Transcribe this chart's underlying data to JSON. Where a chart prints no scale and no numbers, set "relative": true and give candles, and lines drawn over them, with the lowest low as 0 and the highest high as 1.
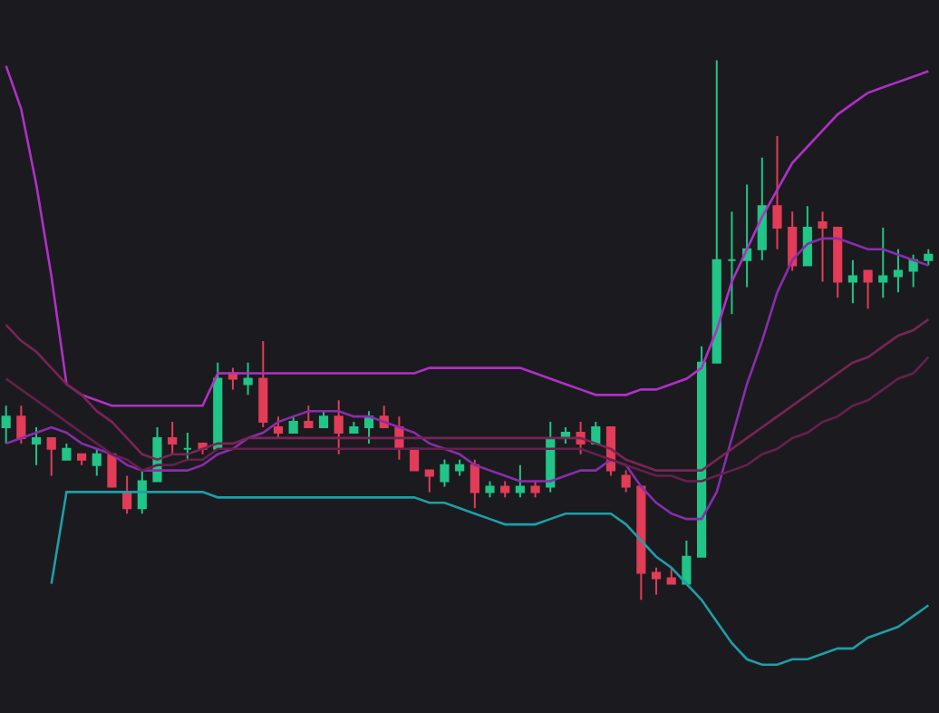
{
  "chart_data": {
    "type": "candlestick",
    "relative": true,
    "categories": [
      null,
      null,
      null,
      null,
      null,
      null,
      null,
      null,
      null,
      null,
      null,
      null,
      null,
      null,
      null,
      null,
      null,
      null,
      null,
      null,
      null,
      null,
      null,
      null,
      null,
      null,
      null,
      null,
      null,
      null,
      null,
      null,
      null,
      null,
      null,
      null,
      null,
      null,
      null,
      null,
      null,
      null,
      null,
      null,
      null,
      null,
      null,
      null,
      null,
      null,
      null,
      null,
      null,
      null,
      null,
      null,
      null,
      null,
      null,
      null,
      null,
      null
    ],
    "ohlc": [
      [
        0.32,
        0.36,
        0.29,
        0.34
      ],
      [
        0.34,
        0.36,
        0.29,
        0.3
      ],
      [
        0.29,
        0.32,
        0.25,
        0.3
      ],
      [
        0.3,
        0.3,
        0.23,
        0.28
      ],
      [
        0.26,
        0.29,
        0.26,
        0.28
      ],
      [
        0.27,
        0.27,
        0.25,
        0.26
      ],
      [
        0.25,
        0.28,
        0.23,
        0.27
      ],
      [
        0.27,
        0.27,
        0.21,
        0.21
      ],
      [
        0.2,
        0.23,
        0.16,
        0.17
      ],
      [
        0.17,
        0.24,
        0.16,
        0.22
      ],
      [
        0.22,
        0.32,
        0.22,
        0.3
      ],
      [
        0.3,
        0.33,
        0.27,
        0.29
      ],
      [
        0.28,
        0.31,
        0.26,
        0.28
      ],
      [
        0.29,
        0.29,
        0.27,
        0.28
      ],
      [
        0.28,
        0.44,
        0.28,
        0.41
      ],
      [
        0.42,
        0.43,
        0.39,
        0.41
      ],
      [
        0.4,
        0.44,
        0.38,
        0.41
      ],
      [
        0.41,
        0.48,
        0.32,
        0.33
      ],
      [
        0.32,
        0.34,
        0.3,
        0.31
      ],
      [
        0.31,
        0.34,
        0.31,
        0.33
      ],
      [
        0.33,
        0.36,
        0.32,
        0.32
      ],
      [
        0.32,
        0.35,
        0.32,
        0.34
      ],
      [
        0.34,
        0.37,
        0.27,
        0.31
      ],
      [
        0.31,
        0.33,
        0.31,
        0.32
      ],
      [
        0.32,
        0.35,
        0.29,
        0.34
      ],
      [
        0.34,
        0.36,
        0.32,
        0.32
      ],
      [
        0.32,
        0.34,
        0.26,
        0.28
      ],
      [
        0.28,
        0.28,
        0.24,
        0.24
      ],
      [
        0.24,
        0.24,
        0.2,
        0.23
      ],
      [
        0.22,
        0.26,
        0.21,
        0.25
      ],
      [
        0.24,
        0.26,
        0.23,
        0.25
      ],
      [
        0.25,
        0.26,
        0.17,
        0.2
      ],
      [
        0.2,
        0.22,
        0.19,
        0.21
      ],
      [
        0.21,
        0.22,
        0.19,
        0.2
      ],
      [
        0.2,
        0.25,
        0.19,
        0.21
      ],
      [
        0.21,
        0.22,
        0.19,
        0.2
      ],
      [
        0.21,
        0.33,
        0.2,
        0.3
      ],
      [
        0.3,
        0.32,
        0.29,
        0.31
      ],
      [
        0.31,
        0.33,
        0.27,
        0.29
      ],
      [
        0.29,
        0.33,
        0.29,
        0.32
      ],
      [
        0.32,
        0.32,
        0.23,
        0.24
      ],
      [
        0.23,
        0.24,
        0.2,
        0.21
      ],
      [
        0.21,
        0.21,
        0,
        0.05
      ],
      [
        0.05,
        0.06,
        0.01,
        0.04
      ],
      [
        0.04,
        0.06,
        0.03,
        0.03
      ],
      [
        0.03,
        0.11,
        0.03,
        0.08
      ],
      [
        0.08,
        0.47,
        0.08,
        0.44
      ],
      [
        0.44,
        1,
        0.44,
        0.63
      ],
      [
        0.63,
        0.72,
        0.53,
        0.63
      ],
      [
        0.63,
        0.77,
        0.58,
        0.65
      ],
      [
        0.65,
        0.82,
        0.63,
        0.73
      ],
      [
        0.73,
        0.86,
        0.65,
        0.69
      ],
      [
        0.69,
        0.72,
        0.61,
        0.62
      ],
      [
        0.62,
        0.73,
        0.62,
        0.69
      ],
      [
        0.7,
        0.72,
        0.59,
        0.69
      ],
      [
        0.69,
        0.69,
        0.56,
        0.59
      ],
      [
        0.59,
        0.63,
        0.55,
        0.6
      ],
      [
        0.61,
        0.61,
        0.54,
        0.59
      ],
      [
        0.59,
        0.69,
        0.56,
        0.6
      ],
      [
        0.6,
        0.65,
        0.57,
        0.61
      ],
      [
        0.61,
        0.64,
        0.58,
        0.63
      ],
      [
        0.63,
        0.65,
        0.62,
        0.64
      ]
    ],
    "colors": [
      "#20c587",
      "#e23c58",
      "#20c587",
      "#e23c58",
      "#20c587",
      "#e23c58",
      "#20c587",
      "#e23c58",
      "#e23c58",
      "#20c587",
      "#20c587",
      "#e23c58",
      "#20c587",
      "#e23c58",
      "#20c587",
      "#e23c58",
      "#20c587",
      "#e23c58",
      "#e23c58",
      "#20c587",
      "#e23c58",
      "#20c587",
      "#e23c58",
      "#20c587",
      "#20c587",
      "#e23c58",
      "#e23c58",
      "#e23c58",
      "#e23c58",
      "#20c587",
      "#20c587",
      "#e23c58",
      "#20c587",
      "#e23c58",
      "#20c587",
      "#e23c58",
      "#20c587",
      "#20c587",
      "#e23c58",
      "#20c587",
      "#e23c58",
      "#e23c58",
      "#e23c58",
      "#e23c58",
      "#e23c58",
      "#20c587",
      "#20c587",
      "#20c587",
      "#20c587",
      "#20c587",
      "#20c587",
      "#e23c58",
      "#e23c58",
      "#20c587",
      "#e23c58",
      "#e23c58",
      "#20c587",
      "#e23c58",
      "#20c587",
      "#20c587",
      "#20c587",
      "#20c587"
    ],
    "series": [
      {
        "type": "line",
        "color": "#b030c6",
        "values": [
          0.99,
          0.91,
          0.77,
          0.6,
          0.4,
          0.38,
          0.37,
          0.36,
          0.36,
          0.36,
          0.36,
          0.36,
          0.36,
          0.36,
          0.42,
          0.42,
          0.42,
          0.42,
          0.42,
          0.42,
          0.42,
          0.42,
          0.42,
          0.42,
          0.42,
          0.42,
          0.42,
          0.42,
          0.43,
          0.43,
          0.43,
          0.43,
          0.43,
          0.43,
          0.43,
          0.42,
          0.41,
          0.4,
          0.39,
          0.38,
          0.38,
          0.38,
          0.39,
          0.39,
          0.4,
          0.41,
          0.43,
          0.5,
          0.59,
          0.65,
          0.71,
          0.76,
          0.81,
          0.84,
          0.87,
          0.9,
          0.92,
          0.94,
          0.95,
          0.96,
          0.97,
          0.98
        ]
      },
      {
        "type": "line",
        "color": "#8a2cae",
        "values": [
          0.29,
          0.3,
          0.31,
          0.32,
          0.31,
          0.29,
          0.28,
          0.27,
          0.25,
          0.24,
          0.24,
          0.24,
          0.24,
          0.25,
          0.27,
          0.28,
          0.3,
          0.31,
          0.33,
          0.34,
          0.35,
          0.35,
          0.35,
          0.34,
          0.34,
          0.33,
          0.32,
          0.31,
          0.29,
          0.28,
          0.27,
          0.25,
          0.24,
          0.23,
          0.22,
          0.22,
          0.22,
          0.23,
          0.24,
          0.24,
          0.26,
          0.25,
          0.21,
          0.18,
          0.16,
          0.15,
          0.15,
          0.2,
          0.3,
          0.4,
          0.48,
          0.57,
          0.63,
          0.66,
          0.67,
          0.67,
          0.66,
          0.65,
          0.65,
          0.64,
          0.63,
          0.62
        ]
      },
      {
        "type": "line",
        "color": "#1e9ea8",
        "values": [
          null,
          null,
          null,
          0.03,
          0.2,
          0.2,
          0.2,
          0.2,
          0.2,
          0.2,
          0.2,
          0.2,
          0.2,
          0.2,
          0.19,
          0.19,
          0.19,
          0.19,
          0.19,
          0.19,
          0.19,
          0.19,
          0.19,
          0.19,
          0.19,
          0.19,
          0.19,
          0.19,
          0.18,
          0.18,
          0.17,
          0.16,
          0.15,
          0.14,
          0.14,
          0.14,
          0.15,
          0.16,
          0.16,
          0.16,
          0.16,
          0.14,
          0.11,
          0.08,
          0.06,
          0.03,
          0.0,
          -0.04,
          -0.08,
          -0.11,
          -0.12,
          -0.12,
          -0.11,
          -0.11,
          -0.1,
          -0.09,
          -0.09,
          -0.07,
          -0.06,
          -0.05,
          -0.03,
          -0.01
        ]
      },
      {
        "type": "line",
        "color": "#7a2456",
        "values": [
          0.51,
          0.48,
          0.46,
          0.43,
          0.4,
          0.38,
          0.35,
          0.33,
          0.3,
          0.27,
          0.26,
          0.27,
          0.27,
          0.28,
          0.29,
          0.29,
          0.3,
          0.3,
          0.3,
          0.3,
          0.3,
          0.3,
          0.3,
          0.3,
          0.3,
          0.3,
          0.3,
          0.3,
          0.3,
          0.3,
          0.3,
          0.3,
          0.3,
          0.3,
          0.3,
          0.3,
          0.3,
          0.3,
          0.3,
          0.29,
          0.28,
          0.26,
          0.25,
          0.24,
          0.24,
          0.24,
          0.24,
          0.26,
          0.28,
          0.3,
          0.32,
          0.34,
          0.36,
          0.38,
          0.4,
          0.42,
          0.44,
          0.45,
          0.47,
          0.49,
          0.5,
          0.52
        ]
      },
      {
        "type": "line",
        "color": "#66204c",
        "values": [
          0.41,
          0.39,
          0.37,
          0.35,
          0.33,
          0.31,
          0.29,
          0.27,
          0.26,
          0.24,
          0.25,
          0.25,
          0.26,
          0.26,
          0.28,
          0.28,
          0.28,
          0.28,
          0.28,
          0.28,
          0.28,
          0.28,
          0.28,
          0.28,
          0.28,
          0.28,
          0.28,
          0.28,
          0.28,
          0.28,
          0.28,
          0.28,
          0.28,
          0.28,
          0.28,
          0.28,
          0.28,
          0.28,
          0.28,
          0.27,
          0.26,
          0.25,
          0.24,
          0.23,
          0.23,
          0.22,
          0.22,
          0.23,
          0.24,
          0.25,
          0.27,
          0.28,
          0.3,
          0.31,
          0.33,
          0.34,
          0.36,
          0.37,
          0.39,
          0.41,
          0.42,
          0.45
        ]
      }
    ]
  }
}
